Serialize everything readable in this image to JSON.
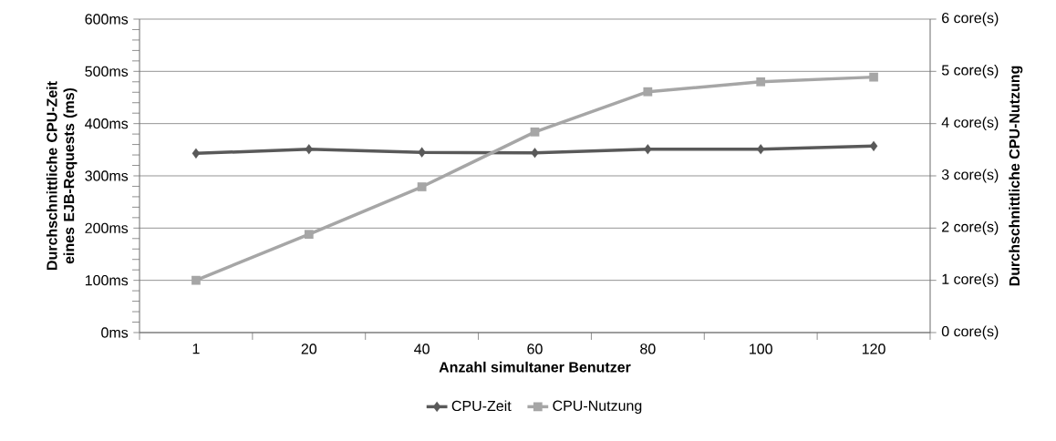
{
  "chart_data": {
    "type": "line",
    "xlabel": "Anzahl simultaner Benutzer",
    "ylabel": "Durchschnittliche CPU-Zeit eines EJB-Requests (ms)",
    "y2label": "Durchschnittliche CPU-Nutzung",
    "categories": [
      "1",
      "20",
      "40",
      "60",
      "80",
      "100",
      "120"
    ],
    "series": [
      {
        "name": "CPU-Zeit",
        "color": "#595959",
        "marker": "diamond",
        "values": [
          343,
          351,
          345,
          344,
          351,
          351,
          357
        ]
      },
      {
        "name": "CPU-Nutzung",
        "color": "#a6a6a6",
        "marker": "square",
        "axis": "y2",
        "values": [
          1.0,
          1.88,
          2.79,
          3.84,
          4.61,
          4.8,
          4.89
        ]
      }
    ],
    "ylim": [
      0,
      600
    ],
    "yticks": [
      {
        "value": 0,
        "label": "0ms"
      },
      {
        "value": 100,
        "label": "100ms"
      },
      {
        "value": 200,
        "label": "200ms"
      },
      {
        "value": 300,
        "label": "300ms"
      },
      {
        "value": 400,
        "label": "400ms"
      },
      {
        "value": 500,
        "label": "500ms"
      },
      {
        "value": 600,
        "label": "600ms"
      }
    ],
    "y2lim": [
      0,
      6
    ],
    "y2ticks": [
      {
        "value": 0,
        "label": "0 core(s)"
      },
      {
        "value": 1,
        "label": "1 core(s)"
      },
      {
        "value": 2,
        "label": "2 core(s)"
      },
      {
        "value": 3,
        "label": "3 core(s)"
      },
      {
        "value": 4,
        "label": "4 core(s)"
      },
      {
        "value": 5,
        "label": "5 core(s)"
      },
      {
        "value": 6,
        "label": "6 core(s)"
      }
    ],
    "grid": "y",
    "legend": "bottom"
  }
}
